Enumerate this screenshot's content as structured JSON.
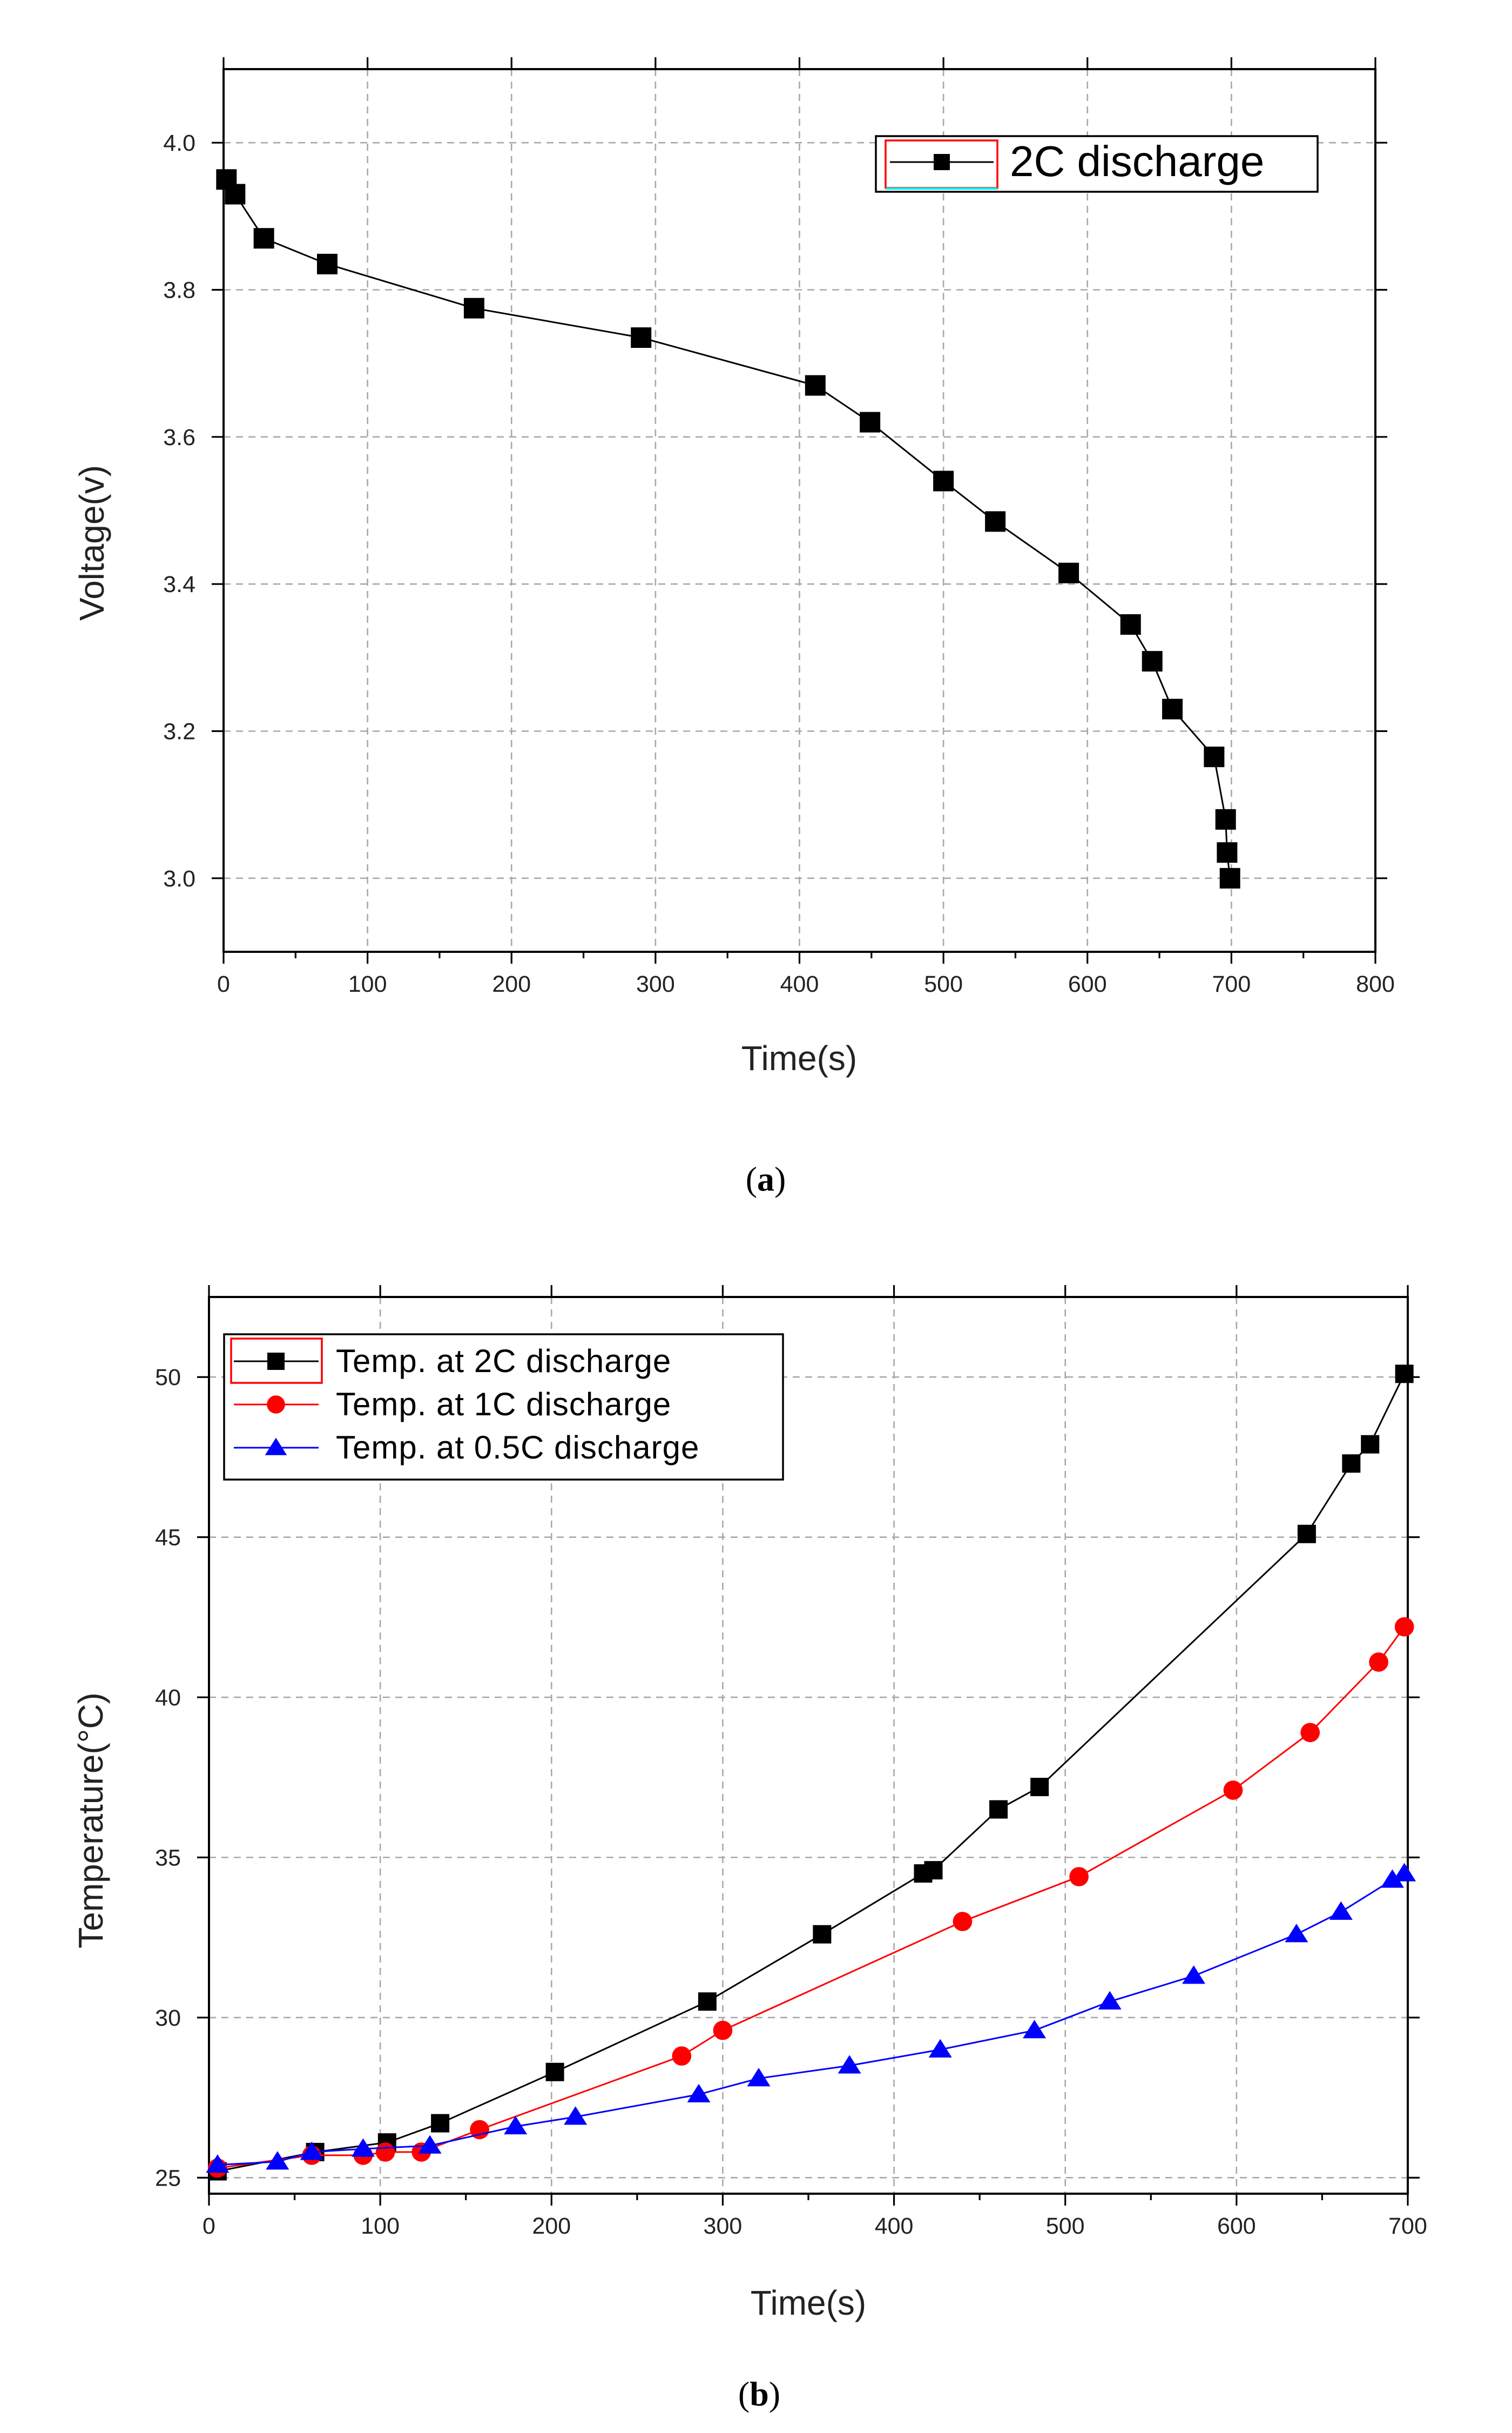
{
  "chart_data": [
    {
      "type": "line",
      "panel": "a",
      "caption": "a",
      "xlabel": "Time(s)",
      "ylabel": "Voltage(v)",
      "xlim": [
        0,
        800
      ],
      "ylim": [
        2.9,
        4.1
      ],
      "xticks": [
        "0",
        "100",
        "200",
        "300",
        "400",
        "500",
        "600",
        "700",
        "800"
      ],
      "yticks": [
        "3.0",
        "3.2",
        "3.4",
        "3.6",
        "3.8",
        "4.0"
      ],
      "grid": true,
      "legend_position": "top-right",
      "series": [
        {
          "name": "2C discharge",
          "color": "#000000",
          "marker": "square",
          "x": [
            2,
            8,
            28,
            72,
            174,
            290,
            411,
            449,
            500,
            536,
            587,
            630,
            645,
            659,
            688,
            696,
            697,
            699
          ],
          "y": [
            3.95,
            3.93,
            3.87,
            3.835,
            3.775,
            3.735,
            3.67,
            3.62,
            3.54,
            3.485,
            3.415,
            3.345,
            3.295,
            3.23,
            3.165,
            3.08,
            3.035,
            3.0
          ]
        }
      ]
    },
    {
      "type": "line",
      "panel": "b",
      "caption": "b",
      "xlabel": "Time(s)",
      "ylabel": "Temperature(°C)",
      "xlim": [
        0,
        700
      ],
      "ylim": [
        24.5,
        52.5
      ],
      "xticks": [
        "0",
        "100",
        "200",
        "300",
        "400",
        "500",
        "600",
        "700"
      ],
      "yticks": [
        "25",
        "30",
        "35",
        "40",
        "45",
        "50"
      ],
      "grid": true,
      "legend_position": "top-left",
      "series": [
        {
          "name": "Temp. at 2C discharge",
          "color": "#000000",
          "marker": "square",
          "x": [
            5,
            62,
            104,
            135,
            202,
            291,
            358,
            417,
            423,
            461,
            485,
            641,
            667,
            678,
            698
          ],
          "y": [
            25.2,
            25.8,
            26.1,
            26.7,
            28.3,
            30.5,
            32.6,
            34.5,
            34.6,
            36.5,
            37.2,
            45.1,
            47.3,
            47.9,
            50.1
          ]
        },
        {
          "name": "Temp. at 1C discharge",
          "color": "#ff0000",
          "marker": "circle",
          "x": [
            5,
            60,
            90,
            103,
            124,
            158,
            276,
            300,
            440,
            508,
            598,
            643,
            683,
            698
          ],
          "y": [
            25.3,
            25.7,
            25.7,
            25.8,
            25.8,
            26.5,
            28.8,
            29.6,
            33.0,
            34.4,
            37.1,
            38.9,
            41.1,
            42.2
          ]
        },
        {
          "name": "Temp. at 0.5C discharge",
          "color": "#0000ff",
          "marker": "triangle",
          "x": [
            5,
            40,
            60,
            90,
            129,
            179,
            214,
            286,
            321,
            374,
            427,
            482,
            526,
            575,
            635,
            661,
            691,
            698
          ],
          "y": [
            25.4,
            25.5,
            25.8,
            25.9,
            26.0,
            26.6,
            26.9,
            27.6,
            28.1,
            28.5,
            29.0,
            29.6,
            30.5,
            31.3,
            32.6,
            33.3,
            34.3,
            34.5
          ]
        }
      ]
    }
  ]
}
